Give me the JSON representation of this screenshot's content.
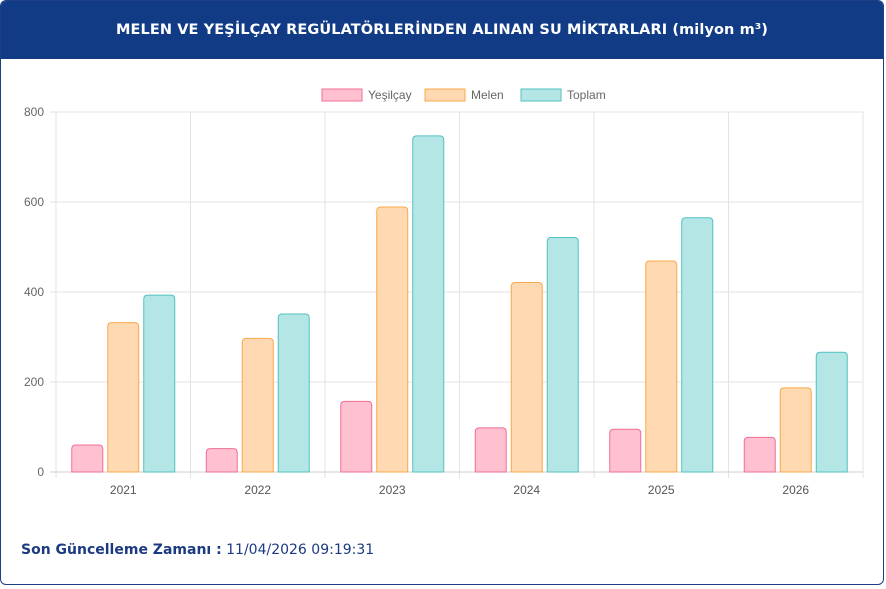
{
  "header": {
    "title": "MELEN VE YEŞİLÇAY REGÜLATÖRLERİNDEN ALINAN SU MİKTARLARI (milyon m³)"
  },
  "footer": {
    "label": "Son Güncelleme Zamanı :",
    "value": "11/04/2026 09:19:31"
  },
  "colors": {
    "header_bg": "#123b86",
    "yesilcay_fill": "#ffc1d0",
    "yesilcay_stroke": "#f06e95",
    "melen_fill": "#fed9b2",
    "melen_stroke": "#f8a94b",
    "toplam_fill": "#b5e6e6",
    "toplam_stroke": "#52c1c1"
  },
  "chart_data": {
    "type": "bar",
    "title": "",
    "xlabel": "",
    "ylabel": "",
    "ylim": [
      0,
      800
    ],
    "yticks": [
      0,
      200,
      400,
      600,
      800
    ],
    "categories": [
      "2021",
      "2022",
      "2023",
      "2024",
      "2025",
      "2026"
    ],
    "legend_position": "top-center",
    "grid": true,
    "series": [
      {
        "name": "Yeşilçay",
        "values": [
          60,
          52,
          157,
          98,
          95,
          77
        ]
      },
      {
        "name": "Melen",
        "values": [
          332,
          297,
          589,
          421,
          469,
          187
        ]
      },
      {
        "name": "Toplam",
        "values": [
          393,
          351,
          747,
          521,
          565,
          266
        ]
      }
    ]
  }
}
